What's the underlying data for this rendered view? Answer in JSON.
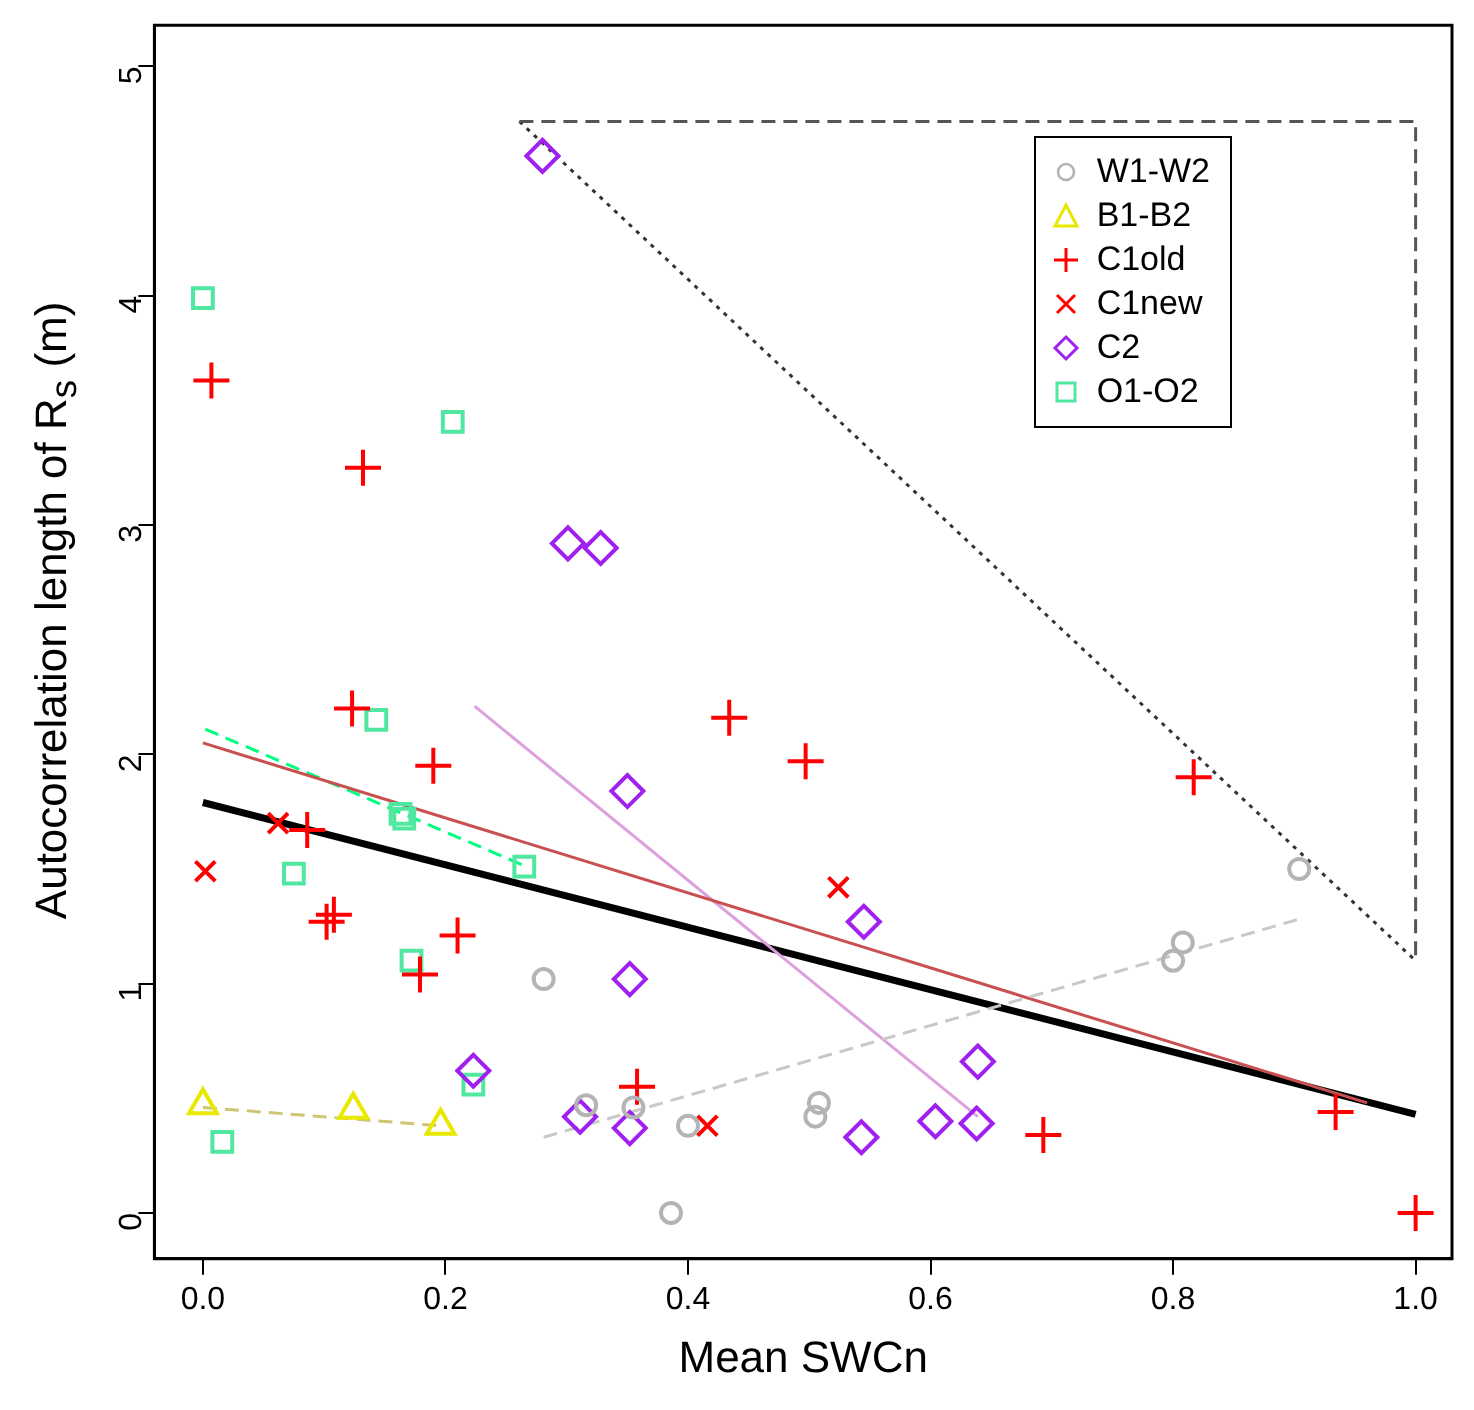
{
  "chart_data": {
    "type": "scatter",
    "xlabel": "Mean SWCn",
    "ylabel": "Autocorrelation length of R$_{s}$ (m)",
    "xlim": [
      -0.04,
      1.03
    ],
    "ylim": [
      -0.2,
      5.18
    ],
    "xticks": [
      {
        "value": 0,
        "label": "0.0"
      },
      {
        "value": 0.2,
        "label": "0.2"
      },
      {
        "value": 0.4,
        "label": "0.4"
      },
      {
        "value": 0.6,
        "label": "0.6"
      },
      {
        "value": 0.8,
        "label": "0.8"
      },
      {
        "value": 1,
        "label": "1.0"
      }
    ],
    "yticks": [
      0,
      1,
      2,
      3,
      4,
      5
    ],
    "grid": false,
    "legend": "top right",
    "series": [
      {
        "name": "W1-W2",
        "type": "scatter",
        "marker": "circle",
        "color": "#b4b4b4",
        "x": [
          0.281,
          0.316,
          0.355,
          0.4,
          0.386,
          0.508,
          0.505,
          0.904,
          0.808,
          0.8
        ],
        "values": [
          1.02,
          0.47,
          0.46,
          0.38,
          0,
          0.48,
          0.42,
          1.5,
          1.18,
          1.1
        ]
      },
      {
        "name": "B1-B2",
        "type": "scatter",
        "marker": "triangle",
        "color": "#e8e800",
        "x": [
          0,
          0.124,
          0.196
        ],
        "values": [
          0.47,
          0.45,
          0.38
        ]
      },
      {
        "name": "C1old",
        "type": "scatter",
        "marker": "cross",
        "color": "#ff0000",
        "x": [
          0.007,
          0.132,
          0.123,
          0.19,
          0.086,
          0.108,
          0.102,
          0.21,
          0.179,
          0.358,
          0.434,
          0.497,
          0.817,
          0.693,
          0.934,
          1.0
        ],
        "values": [
          3.63,
          3.25,
          2.2,
          1.95,
          1.67,
          1.3,
          1.27,
          1.21,
          1.04,
          0.55,
          2.16,
          1.97,
          1.9,
          0.34,
          0.44,
          0
        ]
      },
      {
        "name": "C1new",
        "type": "scatter",
        "marker": "x",
        "color": "#ff0000",
        "x": [
          0.002,
          0.062,
          0.416,
          0.524
        ],
        "values": [
          1.49,
          1.7,
          0.38,
          1.42
        ]
      },
      {
        "name": "C2",
        "type": "scatter",
        "marker": "diamond",
        "color": "#a020f0",
        "x": [
          0.28,
          0.301,
          0.328,
          0.35,
          0.352,
          0.223,
          0.311,
          0.352,
          0.545,
          0.639,
          0.543,
          0.604,
          0.638
        ],
        "values": [
          4.61,
          2.92,
          2.9,
          1.84,
          1.02,
          0.62,
          0.42,
          0.37,
          1.27,
          0.66,
          0.33,
          0.4,
          0.39
        ]
      },
      {
        "name": "O1-O2",
        "type": "scatter",
        "marker": "square",
        "color": "#50e8a0",
        "x": [
          0,
          0.206,
          0.143,
          0.163,
          0.166,
          0.075,
          0.265,
          0.172,
          0.223,
          0.016
        ],
        "values": [
          3.99,
          3.45,
          2.15,
          1.74,
          1.72,
          1.48,
          1.51,
          1.1,
          0.56,
          0.31
        ]
      },
      {
        "type": "line",
        "marker": "none",
        "line_style": "dashed",
        "color": "#c8c8c8",
        "x": [
          0.281,
          0.903
        ],
        "values": [
          0.33,
          1.28
        ]
      },
      {
        "type": "line",
        "marker": "none",
        "line_style": "dashed",
        "color": "#cdc673",
        "x": [
          0,
          0.196
        ],
        "values": [
          0.46,
          0.38
        ]
      },
      {
        "type": "line",
        "marker": "none",
        "line_style": "solid",
        "color": "#c85050",
        "x": [
          0,
          0.96
        ],
        "values": [
          2.05,
          0.48
        ]
      },
      {
        "type": "line",
        "marker": "none",
        "line_style": "solid",
        "color": "#dda0dd",
        "x": [
          0.224,
          0.639
        ],
        "values": [
          2.21,
          0.42
        ]
      },
      {
        "type": "line",
        "marker": "none",
        "line_style": "dashed",
        "color": "#00ff7f",
        "x": [
          0.002,
          0.267
        ],
        "values": [
          2.11,
          1.51
        ]
      },
      {
        "type": "line",
        "marker": "none",
        "line_style": "solid",
        "color": "#000000",
        "x": [
          0,
          1
        ],
        "values": [
          1.79,
          0.43
        ]
      },
      {
        "type": "line",
        "marker": "none",
        "line_style": "dashed",
        "color": "#555555",
        "x": [
          0.261,
          1,
          1
        ],
        "values": [
          4.76,
          4.76,
          1.1
        ]
      },
      {
        "type": "line",
        "marker": "none",
        "line_style": "dotted",
        "color": "#333333",
        "x": [
          0.261,
          1
        ],
        "values": [
          4.76,
          1.1
        ]
      }
    ]
  }
}
